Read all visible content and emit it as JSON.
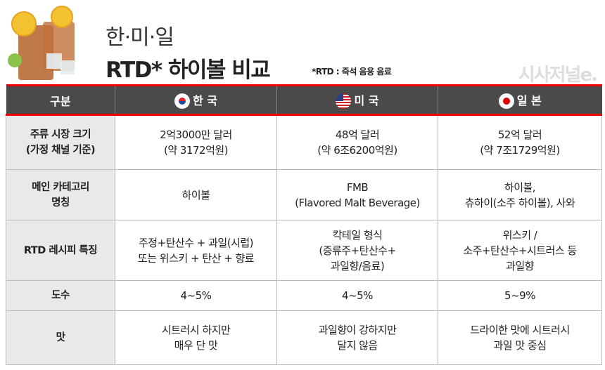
{
  "title": {
    "line1": "한·미·일",
    "line2": "RTD* 하이볼 비교",
    "note": "*RTD : 즉석 음용 음료",
    "logo": "시사저널e."
  },
  "header": {
    "col0": "구분",
    "col1": "한 국",
    "col2": "미 국",
    "col3": "일 본"
  },
  "rows": [
    {
      "label": [
        "주류 시장 크기",
        "(가정 채널 기준)"
      ],
      "kr": [
        "2억3000만 달러",
        "(약 3172억원)"
      ],
      "us": [
        "48억 달러",
        "(약 6조6200억원)"
      ],
      "jp": [
        "52억 달러",
        "(약 7조1729억원)"
      ]
    },
    {
      "label": [
        "메인 카테고리",
        "명칭"
      ],
      "kr": [
        "하이볼"
      ],
      "us": [
        "FMB",
        "(Flavored Malt Beverage)"
      ],
      "jp": [
        "하이볼,",
        "츄하이(소주 하이볼), 사와"
      ]
    },
    {
      "label": [
        "RTD 레시피 특징"
      ],
      "kr": [
        "주정+탄산수 + 과일(시럽)",
        "또는 위스키 + 탄산 + 향료"
      ],
      "us": [
        "칵테일 형식",
        "(증류주+탄산수+",
        "과일향/음료)"
      ],
      "jp": [
        "위스키 /",
        "소주+탄산수+시트러스 등",
        "과일향"
      ]
    },
    {
      "label": [
        "도수"
      ],
      "kr": [
        "4~5%"
      ],
      "us": [
        "4~5%"
      ],
      "jp": [
        "5~9%"
      ]
    },
    {
      "label": [
        "맛"
      ],
      "kr": [
        "시트러시 하지만",
        "매우 단 맛"
      ],
      "us": [
        "과일향이 강하지만",
        "달지 않음"
      ],
      "jp": [
        "드라이한 맛에 시트러시",
        "과일 맛 중심"
      ]
    }
  ]
}
